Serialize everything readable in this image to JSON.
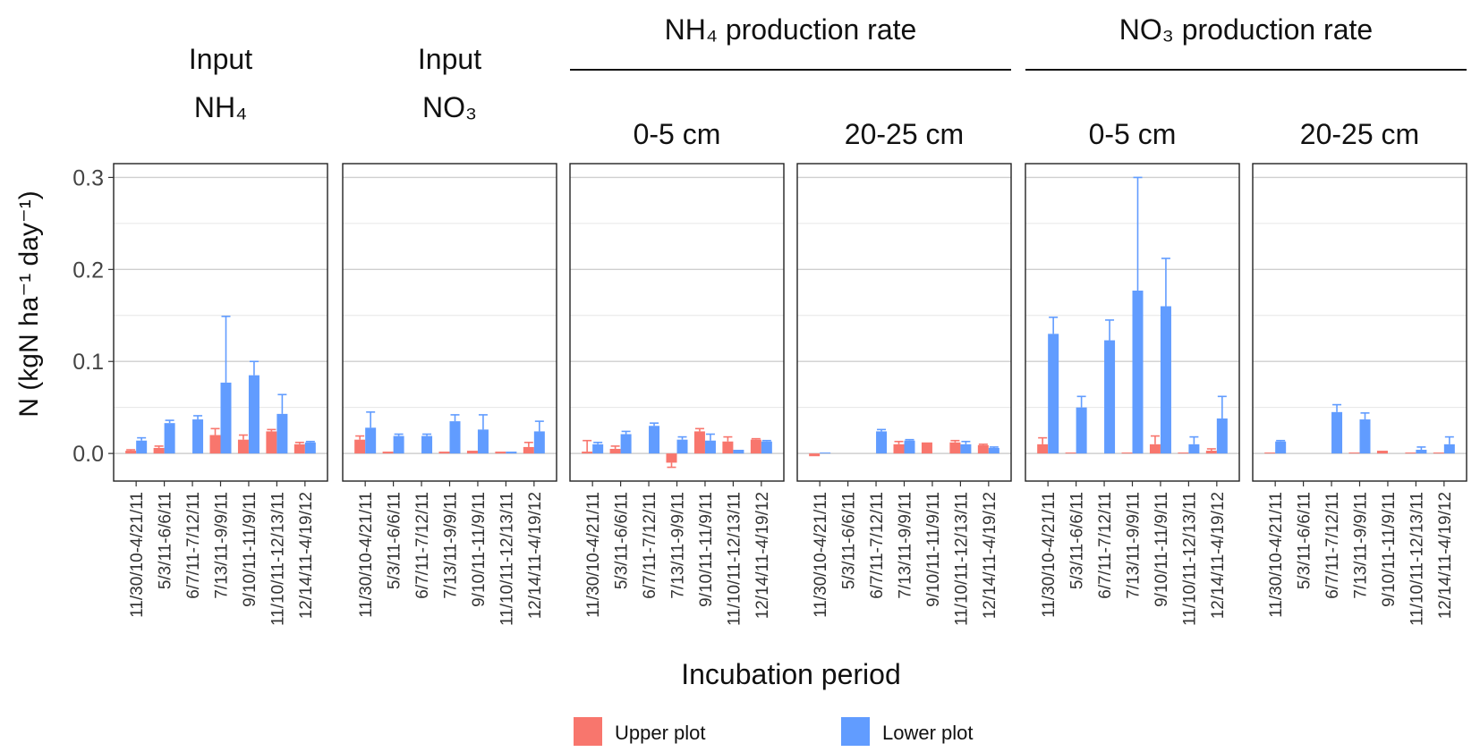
{
  "chart_data": {
    "type": "bar",
    "ylabel": "N (kgN ha⁻¹ day⁻¹)",
    "xlabel": "Incubation period",
    "ylim": [
      -0.03,
      0.315
    ],
    "yticks": [
      0.0,
      0.1,
      0.2,
      0.3
    ],
    "ytick_labels": [
      "0.0",
      "0.1",
      "0.2",
      "0.3"
    ],
    "grid": true,
    "legend_position": "bottom",
    "categories": [
      "11/30/10-4/21/11",
      "5/3/11-6/6/11",
      "6/7/11-7/12/11",
      "7/13/11-9/9/11",
      "9/10/11-11/9/11",
      "11/10/11-12/13/11",
      "12/14/11-4/19/12"
    ],
    "series_legend": [
      {
        "name": "Upper plot",
        "color": "#F8766D"
      },
      {
        "name": "Lower plot",
        "color": "#619CFF"
      }
    ],
    "group_headers": [
      {
        "label": "NH₄ production rate",
        "panels": [
          2,
          3
        ]
      },
      {
        "label": "NO₃ production rate",
        "panels": [
          4,
          5
        ]
      }
    ],
    "panels": [
      {
        "title_line1": "Input",
        "title_line2": "NH₄",
        "series": [
          {
            "name": "Upper plot",
            "values": [
              0.003,
              0.006,
              null,
              0.02,
              0.015,
              0.024,
              0.01
            ],
            "errors": [
              0.001,
              0.002,
              null,
              0.007,
              0.005,
              0.002,
              0.002
            ]
          },
          {
            "name": "Lower plot",
            "values": [
              0.014,
              0.033,
              0.037,
              0.077,
              0.085,
              0.043,
              0.012
            ],
            "errors": [
              0.003,
              0.003,
              0.004,
              0.072,
              0.015,
              0.021,
              0.001
            ]
          }
        ]
      },
      {
        "title_line1": "Input",
        "title_line2": "NO₃",
        "series": [
          {
            "name": "Upper plot",
            "values": [
              0.015,
              0.002,
              null,
              0.002,
              0.003,
              0.002,
              0.007
            ],
            "errors": [
              0.004,
              0.0,
              null,
              0.0,
              0.0,
              0.0,
              0.005
            ]
          },
          {
            "name": "Lower plot",
            "values": [
              0.028,
              0.019,
              0.019,
              0.035,
              0.026,
              0.002,
              0.024
            ],
            "errors": [
              0.017,
              0.002,
              0.002,
              0.007,
              0.016,
              0.0,
              0.011
            ]
          }
        ]
      },
      {
        "title_line1": "0-5 cm",
        "title_line2": "",
        "series": [
          {
            "name": "Upper plot",
            "values": [
              0.002,
              0.005,
              null,
              -0.01,
              0.024,
              0.013,
              0.015
            ],
            "errors": [
              0.012,
              0.003,
              null,
              0.005,
              0.003,
              0.005,
              0.001
            ]
          },
          {
            "name": "Lower plot",
            "values": [
              0.01,
              0.021,
              0.03,
              0.015,
              0.014,
              0.004,
              0.013
            ],
            "errors": [
              0.002,
              0.003,
              0.003,
              0.003,
              0.007,
              0.0,
              0.001
            ]
          }
        ]
      },
      {
        "title_line1": "20-25 cm",
        "title_line2": "",
        "series": [
          {
            "name": "Upper plot",
            "values": [
              -0.003,
              null,
              null,
              0.01,
              0.012,
              0.012,
              0.009
            ],
            "errors": [
              0.0,
              null,
              null,
              0.003,
              0.0,
              0.002,
              0.001
            ]
          },
          {
            "name": "Lower plot",
            "values": [
              0.001,
              null,
              0.024,
              0.014,
              null,
              0.01,
              0.006
            ],
            "errors": [
              0.0,
              null,
              0.002,
              0.001,
              null,
              0.003,
              0.001
            ]
          }
        ]
      },
      {
        "title_line1": "0-5 cm",
        "title_line2": "",
        "series": [
          {
            "name": "Upper plot",
            "values": [
              0.01,
              0.001,
              null,
              0.001,
              0.01,
              0.001,
              0.003
            ],
            "errors": [
              0.007,
              0.0,
              null,
              0.0,
              0.009,
              0.0,
              0.002
            ]
          },
          {
            "name": "Lower plot",
            "values": [
              0.13,
              0.05,
              0.123,
              0.177,
              0.16,
              0.01,
              0.038
            ],
            "errors": [
              0.018,
              0.012,
              0.022,
              0.123,
              0.052,
              0.008,
              0.024
            ]
          }
        ]
      },
      {
        "title_line1": "20-25 cm",
        "title_line2": "",
        "series": [
          {
            "name": "Upper plot",
            "values": [
              0.001,
              null,
              null,
              0.001,
              0.003,
              0.001,
              0.001
            ],
            "errors": [
              0.0,
              null,
              null,
              0.0,
              0.0,
              0.0,
              0.0
            ]
          },
          {
            "name": "Lower plot",
            "values": [
              0.013,
              null,
              0.045,
              0.037,
              null,
              0.004,
              0.01
            ],
            "errors": [
              0.001,
              null,
              0.008,
              0.007,
              null,
              0.003,
              0.008
            ]
          }
        ]
      }
    ]
  }
}
